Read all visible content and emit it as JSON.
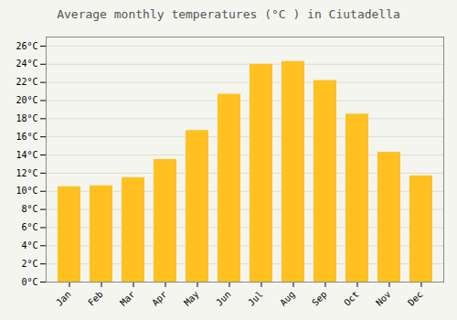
{
  "chart_data": {
    "type": "bar",
    "title": "Average monthly temperatures (°C ) in Ciutadella",
    "categories": [
      "Jan",
      "Feb",
      "Mar",
      "Apr",
      "May",
      "Jun",
      "Jul",
      "Aug",
      "Sep",
      "Oct",
      "Nov",
      "Dec"
    ],
    "values": [
      10.5,
      10.6,
      11.5,
      13.5,
      16.7,
      20.7,
      24.0,
      24.3,
      22.2,
      18.5,
      14.3,
      11.7
    ],
    "color": "#FFC020",
    "ylim": [
      0,
      27
    ],
    "yticks": [
      {
        "value": 0,
        "label": "0°C"
      },
      {
        "value": 2,
        "label": "2°C"
      },
      {
        "value": 4,
        "label": "4°C"
      },
      {
        "value": 6,
        "label": "6°C"
      },
      {
        "value": 8,
        "label": "8°C"
      },
      {
        "value": 10,
        "label": "10°C"
      },
      {
        "value": 12,
        "label": "12°C"
      },
      {
        "value": 14,
        "label": "14°C"
      },
      {
        "value": 16,
        "label": "16°C"
      },
      {
        "value": 18,
        "label": "18°C"
      },
      {
        "value": 20,
        "label": "20°C"
      },
      {
        "value": 22,
        "label": "22°C"
      },
      {
        "value": 24,
        "label": "24°C"
      },
      {
        "value": 26,
        "label": "26°C"
      }
    ],
    "grid": true
  }
}
